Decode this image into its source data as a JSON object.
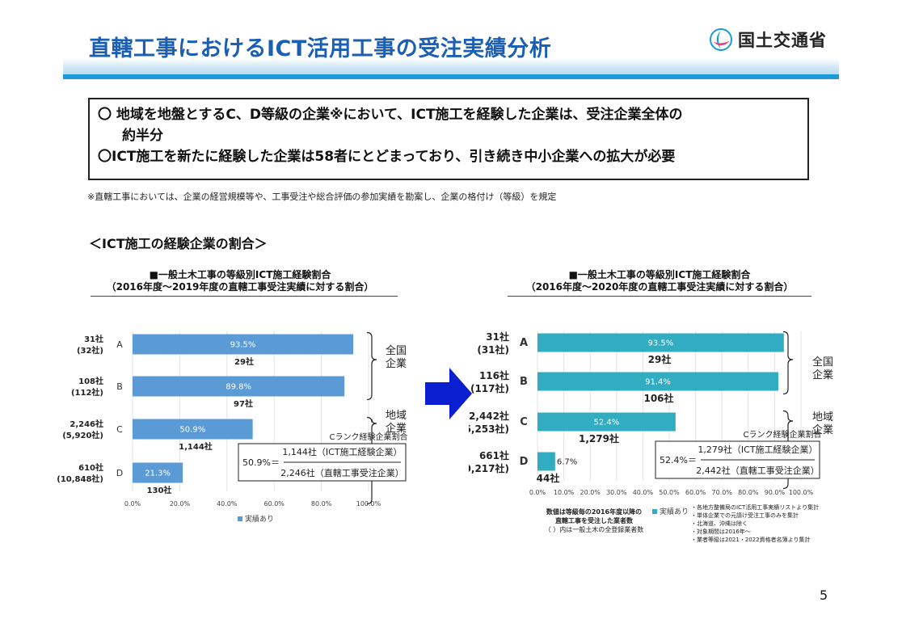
{
  "header": {
    "title": "直轄工事におけるICT活用工事の受注実績分析",
    "logo_text": "国土交通省",
    "logo_icon": "mlit-logo-icon"
  },
  "summary": {
    "line1": "〇 地域を地盤とするC、D等級の企業※において、ICT施工を経験した企業は、受注企業全体の",
    "line1b": "約半分",
    "line2": "〇ICT施工を新たに経験した企業は58者にとどまっており、引き続き中小企業への拡大が必要"
  },
  "note": "※直轄工事においては、企業の経営規模等や、工事受注や総合評価の参加実績を勘案し、企業の格付け（等級）を規定",
  "section_title": "＜ICT施工の経験企業の割合＞",
  "arrow_color": "#0b1fd0",
  "page_number": "5",
  "chart_data": [
    {
      "type": "bar",
      "orientation": "horizontal",
      "title": "■一般土木工事の等級別ICT施工経験割合",
      "subtitle": "（2016年度～2019年度の直轄工事受注実績に対する割合）",
      "categories": [
        "A",
        "B",
        "C",
        "D"
      ],
      "row_labels": [
        {
          "line1": "31社",
          "line2": "(32社)"
        },
        {
          "line1": "108社",
          "line2": "(112社)"
        },
        {
          "line1": "2,246社",
          "line2": "(5,920社)"
        },
        {
          "line1": "610社",
          "line2": "(10,848社)"
        }
      ],
      "series": [
        {
          "name": "実績あり",
          "values": [
            93.5,
            89.8,
            50.9,
            21.3
          ],
          "color": "#5b9bd5"
        }
      ],
      "value_labels": [
        "93.5%",
        "89.8%",
        "50.9%",
        "21.3%"
      ],
      "count_labels": [
        "29社",
        "97社",
        "1,144社",
        "130社"
      ],
      "x_ticks": [
        "0.0%",
        "20.0%",
        "40.0%",
        "60.0%",
        "80.0%",
        "100.0%"
      ],
      "xlim": [
        0,
        100
      ],
      "legend": "bottom",
      "brackets": [
        {
          "line1": "全国",
          "line2": "企業",
          "rows": [
            0,
            1
          ]
        },
        {
          "line1": "地域",
          "line2": "企業",
          "rows": [
            2,
            3
          ]
        }
      ],
      "formula": {
        "label": "Cランク経験企業割合",
        "lhs": "50.9%＝",
        "numerator": "1,144社（ICT施工経験企業）",
        "denominator": "2,246社（直轄工事受注企業）"
      }
    },
    {
      "type": "bar",
      "orientation": "horizontal",
      "title": "■一般土木工事の等級別ICT施工経験割合",
      "subtitle": "（2016年度～2020年度の直轄工事受注実績に対する割合）",
      "categories": [
        "A",
        "B",
        "C",
        "D"
      ],
      "row_labels": [
        {
          "line1": "31社",
          "line2": "(31社)"
        },
        {
          "line1": "116社",
          "line2": "(117社)"
        },
        {
          "line1": "2,442社",
          "line2": "(6,253社)"
        },
        {
          "line1": "661社",
          "line2": "(10,217社)"
        }
      ],
      "series": [
        {
          "name": "実績あり",
          "values": [
            93.5,
            91.4,
            52.4,
            6.7
          ],
          "color": "#31acc1"
        }
      ],
      "value_labels": [
        "93.5%",
        "91.4%",
        "52.4%",
        "6.7%"
      ],
      "count_labels": [
        "29社",
        "106社",
        "1,279社",
        "44社"
      ],
      "x_ticks": [
        "0.0%",
        "10.0%",
        "20.0%",
        "30.0%",
        "40.0%",
        "50.0%",
        "60.0%",
        "70.0%",
        "80.0%",
        "90.0%",
        "100.0%"
      ],
      "xlim": [
        0,
        100
      ],
      "legend": "bottom",
      "brackets": [
        {
          "line1": "全国",
          "line2": "企業",
          "rows": [
            0,
            1
          ]
        },
        {
          "line1": "地域",
          "line2": "企業",
          "rows": [
            2,
            3
          ]
        }
      ],
      "formula": {
        "label": "Cランク経験企業割合",
        "lhs": "52.4%＝",
        "numerator": "1,279社（ICT施工経験企業）",
        "denominator": "2,442社（直轄工事受注企業）"
      },
      "footnote_left": [
        "数値は等級毎の2016年度以降の",
        "直轄工事を受注した業者数",
        "（ ）内は一般土木の全登録業者数"
      ],
      "footnote_right": [
        "・各地方整備局のICT活用工事実績リストより集計",
        "・単体企業での元請け受注工事のみを集計",
        "・北海道、沖縄は除く",
        "・対象期間は2016年～",
        "・業者等級は2021・2022資格者名簿より集計"
      ]
    }
  ]
}
